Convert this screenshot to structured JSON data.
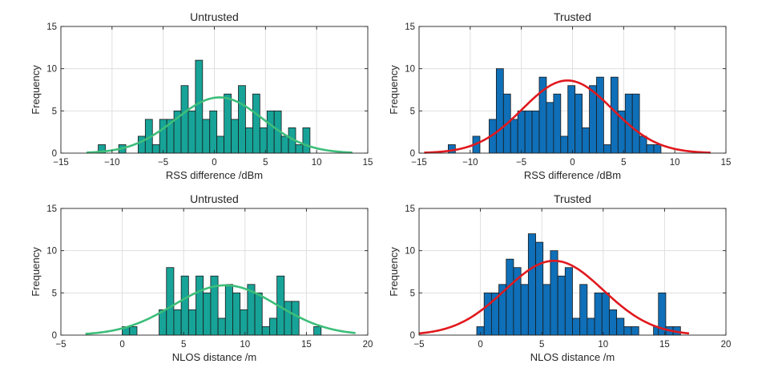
{
  "chart_data": [
    {
      "type": "bar",
      "subtype": "histogram_with_normal_fit",
      "title": "Untrusted",
      "xlabel": "RSS difference /dBm",
      "ylabel": "Frequency",
      "xlim": [
        -15,
        15
      ],
      "ylim": [
        0,
        15
      ],
      "xticks": [
        -15,
        -10,
        -5,
        0,
        5,
        10,
        15
      ],
      "yticks": [
        0,
        5,
        10,
        15
      ],
      "grid": true,
      "bin_width": 0.7,
      "bar_color": "#17A398",
      "fit_color": "#3DBE7A",
      "bins": [
        {
          "x": -11.0,
          "count": 1
        },
        {
          "x": -9.0,
          "count": 1
        },
        {
          "x": -7.1,
          "count": 2
        },
        {
          "x": -6.4,
          "count": 4
        },
        {
          "x": -5.7,
          "count": 1
        },
        {
          "x": -5.0,
          "count": 4
        },
        {
          "x": -4.3,
          "count": 4
        },
        {
          "x": -3.6,
          "count": 5
        },
        {
          "x": -2.9,
          "count": 8
        },
        {
          "x": -2.2,
          "count": 5
        },
        {
          "x": -1.5,
          "count": 11
        },
        {
          "x": -0.8,
          "count": 4
        },
        {
          "x": -0.1,
          "count": 5
        },
        {
          "x": 0.6,
          "count": 2
        },
        {
          "x": 1.3,
          "count": 7
        },
        {
          "x": 2.0,
          "count": 4
        },
        {
          "x": 2.7,
          "count": 8
        },
        {
          "x": 3.4,
          "count": 3
        },
        {
          "x": 4.1,
          "count": 7
        },
        {
          "x": 4.8,
          "count": 3
        },
        {
          "x": 5.5,
          "count": 5
        },
        {
          "x": 6.2,
          "count": 5
        },
        {
          "x": 6.9,
          "count": 2
        },
        {
          "x": 7.6,
          "count": 3
        },
        {
          "x": 8.3,
          "count": 1
        },
        {
          "x": 9.0,
          "count": 3
        }
      ],
      "fit": {
        "mean": 0.5,
        "std": 4.3,
        "peak": 6.6,
        "range": [
          -12.5,
          13.5
        ]
      }
    },
    {
      "type": "bar",
      "subtype": "histogram_with_normal_fit",
      "title": "Trusted",
      "xlabel": "RSS difference /dBm",
      "ylabel": "Frequency",
      "xlim": [
        -15,
        15
      ],
      "ylim": [
        0,
        15
      ],
      "xticks": [
        -15,
        -10,
        -5,
        0,
        5,
        10,
        15
      ],
      "yticks": [
        0,
        5,
        10,
        15
      ],
      "grid": true,
      "bin_width": 0.7,
      "bar_color": "#0F6FB8",
      "fit_color": "#E0191E",
      "bins": [
        {
          "x": -11.8,
          "count": 1
        },
        {
          "x": -9.4,
          "count": 2
        },
        {
          "x": -7.8,
          "count": 4
        },
        {
          "x": -7.1,
          "count": 10
        },
        {
          "x": -6.4,
          "count": 7
        },
        {
          "x": -5.7,
          "count": 4
        },
        {
          "x": -5.0,
          "count": 5
        },
        {
          "x": -4.3,
          "count": 5
        },
        {
          "x": -3.6,
          "count": 5
        },
        {
          "x": -2.9,
          "count": 9
        },
        {
          "x": -2.2,
          "count": 6
        },
        {
          "x": -1.5,
          "count": 7
        },
        {
          "x": -0.8,
          "count": 2
        },
        {
          "x": -0.1,
          "count": 8
        },
        {
          "x": 0.6,
          "count": 7
        },
        {
          "x": 1.3,
          "count": 3
        },
        {
          "x": 2.0,
          "count": 8
        },
        {
          "x": 2.7,
          "count": 9
        },
        {
          "x": 3.4,
          "count": 1
        },
        {
          "x": 4.1,
          "count": 9
        },
        {
          "x": 4.8,
          "count": 5
        },
        {
          "x": 5.5,
          "count": 7
        },
        {
          "x": 6.2,
          "count": 7
        },
        {
          "x": 6.9,
          "count": 2
        },
        {
          "x": 7.6,
          "count": 1
        },
        {
          "x": 8.3,
          "count": 1
        }
      ],
      "fit": {
        "mean": -0.5,
        "std": 4.4,
        "peak": 8.6,
        "range": [
          -14.5,
          13.5
        ]
      }
    },
    {
      "type": "bar",
      "subtype": "histogram_with_normal_fit",
      "title": "Untrusted",
      "xlabel": "NLOS distance /m",
      "ylabel": "Frequency",
      "xlim": [
        -5,
        20
      ],
      "ylim": [
        0,
        15
      ],
      "xticks": [
        -5,
        0,
        5,
        10,
        15,
        20
      ],
      "yticks": [
        0,
        5,
        10,
        15
      ],
      "grid": true,
      "bin_width": 0.6,
      "bar_color": "#17A398",
      "fit_color": "#3DBE7A",
      "bins": [
        {
          "x": 0.3,
          "count": 1
        },
        {
          "x": 0.9,
          "count": 1
        },
        {
          "x": 3.3,
          "count": 3
        },
        {
          "x": 3.9,
          "count": 8
        },
        {
          "x": 4.5,
          "count": 3
        },
        {
          "x": 5.1,
          "count": 7
        },
        {
          "x": 5.7,
          "count": 3
        },
        {
          "x": 6.3,
          "count": 7
        },
        {
          "x": 6.9,
          "count": 5
        },
        {
          "x": 7.5,
          "count": 7
        },
        {
          "x": 8.1,
          "count": 2
        },
        {
          "x": 8.7,
          "count": 6
        },
        {
          "x": 9.3,
          "count": 5
        },
        {
          "x": 9.9,
          "count": 3
        },
        {
          "x": 10.5,
          "count": 6
        },
        {
          "x": 11.1,
          "count": 5
        },
        {
          "x": 11.7,
          "count": 1
        },
        {
          "x": 12.3,
          "count": 2
        },
        {
          "x": 12.9,
          "count": 7
        },
        {
          "x": 13.5,
          "count": 4
        },
        {
          "x": 14.1,
          "count": 4
        },
        {
          "x": 15.9,
          "count": 1
        }
      ],
      "fit": {
        "mean": 8.4,
        "std": 4.2,
        "peak": 5.9,
        "range": [
          -3.0,
          19.0
        ]
      }
    },
    {
      "type": "bar",
      "subtype": "histogram_with_normal_fit",
      "title": "Trusted",
      "xlabel": "NLOS distance /m",
      "ylabel": "Frequency",
      "xlim": [
        -5,
        20
      ],
      "ylim": [
        0,
        15
      ],
      "xticks": [
        -5,
        0,
        5,
        10,
        15,
        20
      ],
      "yticks": [
        0,
        5,
        10,
        15
      ],
      "grid": true,
      "bin_width": 0.6,
      "bar_color": "#0F6FB8",
      "fit_color": "#E0191E",
      "bins": [
        {
          "x": 0.0,
          "count": 1
        },
        {
          "x": 0.6,
          "count": 5
        },
        {
          "x": 1.2,
          "count": 5
        },
        {
          "x": 1.8,
          "count": 6
        },
        {
          "x": 2.4,
          "count": 9
        },
        {
          "x": 3.0,
          "count": 8
        },
        {
          "x": 3.6,
          "count": 6
        },
        {
          "x": 4.2,
          "count": 12
        },
        {
          "x": 4.8,
          "count": 11
        },
        {
          "x": 5.4,
          "count": 6
        },
        {
          "x": 6.0,
          "count": 10
        },
        {
          "x": 6.6,
          "count": 7
        },
        {
          "x": 7.2,
          "count": 8
        },
        {
          "x": 7.8,
          "count": 2
        },
        {
          "x": 8.4,
          "count": 6
        },
        {
          "x": 9.0,
          "count": 2
        },
        {
          "x": 9.6,
          "count": 5
        },
        {
          "x": 10.2,
          "count": 5
        },
        {
          "x": 10.8,
          "count": 3
        },
        {
          "x": 11.4,
          "count": 2
        },
        {
          "x": 12.0,
          "count": 1
        },
        {
          "x": 12.6,
          "count": 1
        },
        {
          "x": 14.4,
          "count": 1
        },
        {
          "x": 14.8,
          "count": 5
        },
        {
          "x": 15.4,
          "count": 1
        },
        {
          "x": 16.0,
          "count": 1
        }
      ],
      "fit": {
        "mean": 6.0,
        "std": 4.0,
        "peak": 8.8,
        "range": [
          -5.0,
          17.0
        ]
      }
    }
  ]
}
